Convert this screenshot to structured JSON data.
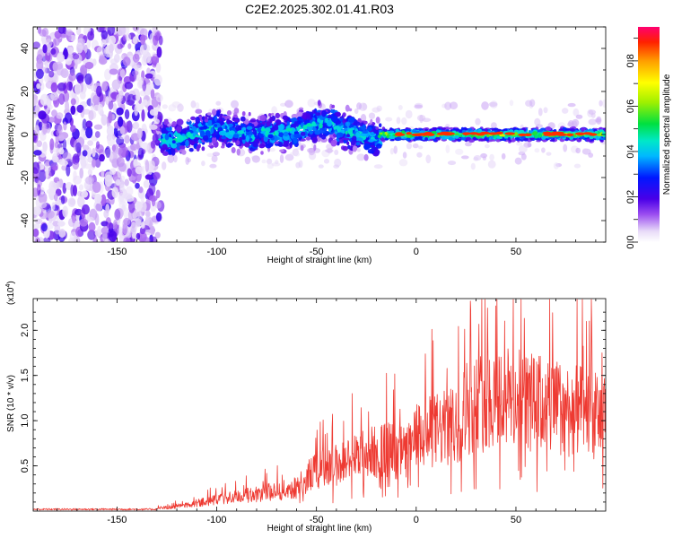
{
  "title": "C2E2.2025.302.01.41.R03",
  "chart_data": [
    {
      "type": "heatmap",
      "name": "spectrogram",
      "xlabel": "Height of straight line (km)",
      "ylabel": "Frequency (Hz)",
      "xlim": [
        -192,
        95
      ],
      "ylim": [
        -50,
        50
      ],
      "xticks": [
        -150,
        -100,
        -50,
        0,
        50
      ],
      "yticks": [
        -40,
        -20,
        0,
        20,
        40
      ],
      "colorbar": {
        "label": "Normalized spectral amplitude",
        "range": [
          0,
          0.95
        ],
        "ticks": [
          0.0,
          0.2,
          0.4,
          0.6,
          0.8
        ]
      },
      "regions": [
        {
          "x_range": [
            -192,
            -128
          ],
          "description_level": 0.12,
          "freq_spread": [
            -50,
            50
          ]
        },
        {
          "x_range": [
            -128,
            -18
          ],
          "description_level": 0.35,
          "freq_center": 0,
          "freq_halfwidth": 9
        },
        {
          "x_range": [
            -18,
            95
          ],
          "description_level": 0.7,
          "freq_center": 0,
          "freq_halfwidth": 3
        }
      ]
    },
    {
      "type": "line",
      "name": "snr",
      "xlabel": "Height of straight line (km)",
      "ylabel": "SNR (10 * v/v)",
      "y_multiplier": "(x10",
      "y_multiplier_exp": "4",
      "y_multiplier_close": ")",
      "xlim": [
        -192,
        95
      ],
      "ylim": [
        0,
        2.35
      ],
      "xticks": [
        -150,
        -100,
        -50,
        0,
        50
      ],
      "yticks": [
        0.5,
        1.0,
        1.5,
        2.0
      ],
      "ytick_labels": [
        "0.5",
        "1.0",
        "1.5",
        "2.0"
      ],
      "color": "#ee3a32",
      "envelope": [
        {
          "x": -192,
          "y": 0.02
        },
        {
          "x": -130,
          "y": 0.03
        },
        {
          "x": -115,
          "y": 0.08
        },
        {
          "x": -100,
          "y": 0.15
        },
        {
          "x": -80,
          "y": 0.22
        },
        {
          "x": -60,
          "y": 0.3
        },
        {
          "x": -50,
          "y": 0.55
        },
        {
          "x": -40,
          "y": 0.6
        },
        {
          "x": -25,
          "y": 0.75
        },
        {
          "x": -15,
          "y": 0.8
        },
        {
          "x": -5,
          "y": 0.75
        },
        {
          "x": 0,
          "y": 0.95
        },
        {
          "x": 10,
          "y": 1.05
        },
        {
          "x": 20,
          "y": 1.1
        },
        {
          "x": 25,
          "y": 1.35
        },
        {
          "x": 40,
          "y": 1.5
        },
        {
          "x": 60,
          "y": 1.4
        },
        {
          "x": 80,
          "y": 1.3
        },
        {
          "x": 95,
          "y": 1.2
        }
      ]
    }
  ]
}
